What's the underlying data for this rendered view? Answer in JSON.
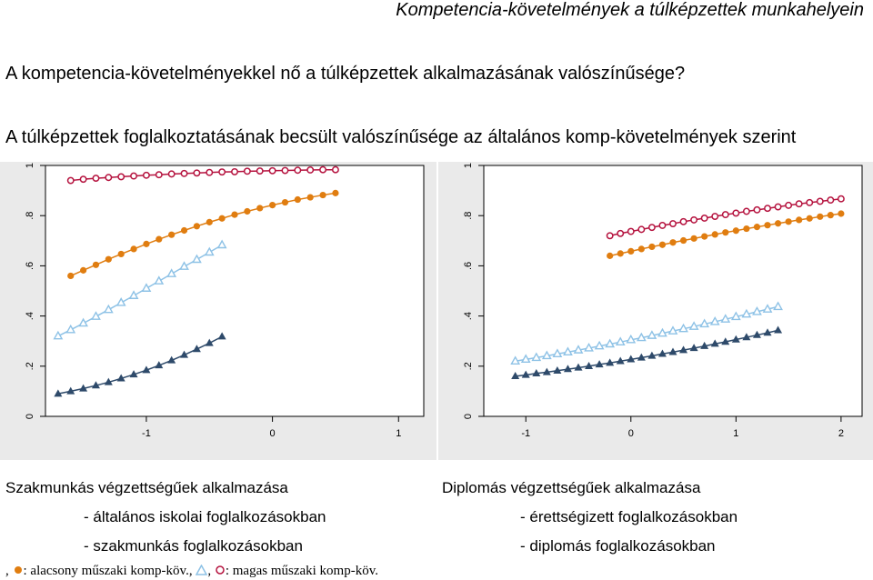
{
  "header": {
    "title": "Kompetencia-követelmények a túlképzettek munkahelyein"
  },
  "question": "A kompetencia-követelményekkel nő a túlképzettek alkalmazásának valószínűsége?",
  "subtitle": "A túlképzettek foglalkoztatásának becsült valószínűsége az általános komp-követelmények szerint",
  "captions": {
    "left_title": "Szakmunkás végzettségűek alkalmazása",
    "left_item1": "-   általános iskolai foglalkozásokban",
    "left_item2": "-   szakmunkás foglalkozásokban",
    "right_title": "Diplomás végzettségűek alkalmazása",
    "right_item1": "-   érettségizett foglalkozásokban",
    "right_item2": "-   diplomás foglalkozásokban"
  },
  "legend": {
    "prefix": ",",
    "text1": ": alacsony műszaki komp-köv.,",
    "text2": ": magas műszaki komp-köv.",
    "sep": ","
  },
  "colors": {
    "crimson": "#b5123e",
    "orange": "#e07d10",
    "lightblue": "#8ec2e6",
    "navy": "#2e4a6a",
    "plot_bg": "#ffffff",
    "outer_bg": "#eaeaea"
  },
  "chart_data": [
    {
      "type": "line",
      "title": "",
      "xlabel": "",
      "ylabel": "",
      "xlim": [
        -1.8,
        1.2
      ],
      "ylim": [
        0,
        1
      ],
      "xticks": [
        "-1",
        "0",
        "1"
      ],
      "yticks": [
        "0",
        ".2",
        ".4",
        ".6",
        ".8",
        "1"
      ],
      "series": [
        {
          "color": "crimson",
          "marker": "circle-open",
          "x": [
            -1.6,
            -1.5,
            -1.4,
            -1.3,
            -1.2,
            -1.1,
            -1.0,
            -0.9,
            -0.8,
            -0.7,
            -0.6,
            -0.5,
            -0.4,
            -0.3,
            -0.2,
            -0.1,
            0.0,
            0.1,
            0.2,
            0.3,
            0.4,
            0.5
          ],
          "y": [
            0.94,
            0.945,
            0.949,
            0.952,
            0.955,
            0.958,
            0.961,
            0.963,
            0.966,
            0.968,
            0.97,
            0.972,
            0.974,
            0.975,
            0.977,
            0.978,
            0.979,
            0.98,
            0.981,
            0.982,
            0.983,
            0.983
          ]
        },
        {
          "color": "orange",
          "marker": "circle-filled",
          "x": [
            -1.6,
            -1.5,
            -1.4,
            -1.3,
            -1.2,
            -1.1,
            -1.0,
            -0.9,
            -0.8,
            -0.7,
            -0.6,
            -0.5,
            -0.4,
            -0.3,
            -0.2,
            -0.1,
            0.0,
            0.1,
            0.2,
            0.3,
            0.4,
            0.5
          ],
          "y": [
            0.56,
            0.582,
            0.604,
            0.626,
            0.647,
            0.667,
            0.687,
            0.706,
            0.724,
            0.741,
            0.758,
            0.774,
            0.789,
            0.804,
            0.817,
            0.83,
            0.842,
            0.853,
            0.864,
            0.873,
            0.882,
            0.89
          ]
        },
        {
          "color": "lightblue",
          "marker": "triangle-open",
          "x": [
            -1.7,
            -1.6,
            -1.5,
            -1.4,
            -1.3,
            -1.2,
            -1.1,
            -1.0,
            -0.9,
            -0.8,
            -0.7,
            -0.6,
            -0.5,
            -0.4
          ],
          "y": [
            0.32,
            0.345,
            0.371,
            0.398,
            0.425,
            0.453,
            0.481,
            0.51,
            0.539,
            0.568,
            0.597,
            0.625,
            0.654,
            0.683
          ]
        },
        {
          "color": "navy",
          "marker": "triangle-filled",
          "x": [
            -1.7,
            -1.6,
            -1.5,
            -1.4,
            -1.3,
            -1.2,
            -1.1,
            -1.0,
            -0.9,
            -0.8,
            -0.7,
            -0.6,
            -0.5,
            -0.4
          ],
          "y": [
            0.09,
            0.1,
            0.111,
            0.123,
            0.136,
            0.151,
            0.167,
            0.184,
            0.203,
            0.223,
            0.245,
            0.268,
            0.292,
            0.318
          ]
        }
      ]
    },
    {
      "type": "line",
      "title": "",
      "xlabel": "",
      "ylabel": "",
      "xlim": [
        -1.4,
        2.2
      ],
      "ylim": [
        0,
        1
      ],
      "xticks": [
        "-1",
        "0",
        "1",
        "2"
      ],
      "yticks": [
        "0",
        ".2",
        ".4",
        ".6",
        ".8",
        "1"
      ],
      "series": [
        {
          "color": "crimson",
          "marker": "circle-open",
          "x": [
            -0.2,
            -0.1,
            0.0,
            0.1,
            0.2,
            0.3,
            0.4,
            0.5,
            0.6,
            0.7,
            0.8,
            0.9,
            1.0,
            1.1,
            1.2,
            1.3,
            1.4,
            1.5,
            1.6,
            1.7,
            1.8,
            1.9,
            2.0
          ],
          "y": [
            0.72,
            0.729,
            0.737,
            0.745,
            0.753,
            0.761,
            0.768,
            0.776,
            0.783,
            0.79,
            0.797,
            0.804,
            0.81,
            0.817,
            0.823,
            0.829,
            0.835,
            0.841,
            0.847,
            0.852,
            0.857,
            0.862,
            0.867
          ]
        },
        {
          "color": "orange",
          "marker": "circle-filled",
          "x": [
            -0.2,
            -0.1,
            0.0,
            0.1,
            0.2,
            0.3,
            0.4,
            0.5,
            0.6,
            0.7,
            0.8,
            0.9,
            1.0,
            1.1,
            1.2,
            1.3,
            1.4,
            1.5,
            1.6,
            1.7,
            1.8,
            1.9,
            2.0
          ],
          "y": [
            0.64,
            0.649,
            0.658,
            0.667,
            0.676,
            0.684,
            0.693,
            0.701,
            0.709,
            0.717,
            0.725,
            0.733,
            0.74,
            0.748,
            0.755,
            0.762,
            0.769,
            0.776,
            0.783,
            0.789,
            0.796,
            0.802,
            0.808
          ]
        },
        {
          "color": "lightblue",
          "marker": "triangle-open",
          "x": [
            -1.1,
            -1.0,
            -0.9,
            -0.8,
            -0.7,
            -0.6,
            -0.5,
            -0.4,
            -0.3,
            -0.2,
            -0.1,
            0.0,
            0.1,
            0.2,
            0.3,
            0.4,
            0.5,
            0.6,
            0.7,
            0.8,
            0.9,
            1.0,
            1.1,
            1.2,
            1.3,
            1.4
          ],
          "y": [
            0.22,
            0.227,
            0.234,
            0.241,
            0.249,
            0.256,
            0.264,
            0.272,
            0.28,
            0.288,
            0.296,
            0.305,
            0.313,
            0.322,
            0.331,
            0.34,
            0.349,
            0.358,
            0.368,
            0.377,
            0.387,
            0.397,
            0.407,
            0.417,
            0.427,
            0.437
          ]
        },
        {
          "color": "navy",
          "marker": "triangle-filled",
          "x": [
            -1.1,
            -1.0,
            -0.9,
            -0.8,
            -0.7,
            -0.6,
            -0.5,
            -0.4,
            -0.3,
            -0.2,
            -0.1,
            0.0,
            0.1,
            0.2,
            0.3,
            0.4,
            0.5,
            0.6,
            0.7,
            0.8,
            0.9,
            1.0,
            1.1,
            1.2,
            1.3,
            1.4
          ],
          "y": [
            0.16,
            0.165,
            0.171,
            0.176,
            0.182,
            0.188,
            0.194,
            0.2,
            0.207,
            0.213,
            0.22,
            0.227,
            0.234,
            0.241,
            0.249,
            0.256,
            0.264,
            0.272,
            0.28,
            0.289,
            0.297,
            0.306,
            0.315,
            0.324,
            0.333,
            0.343
          ]
        }
      ]
    }
  ]
}
